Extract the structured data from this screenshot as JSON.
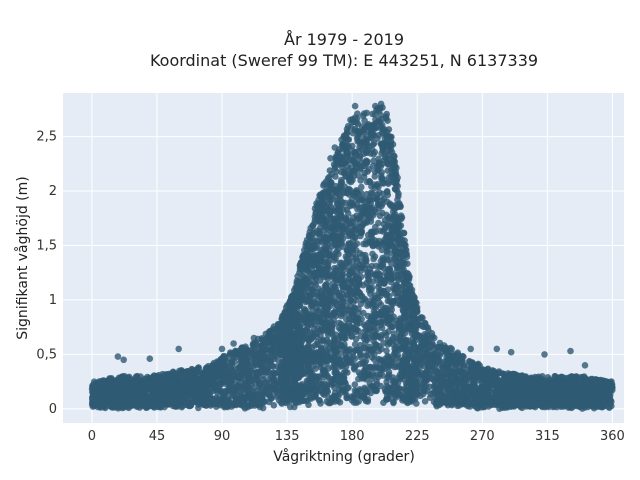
{
  "chart_data": {
    "type": "scatter",
    "title_lines": [
      "År 1979 - 2019",
      "Koordinat (Sweref 99 TM): E 443251, N 6137339"
    ],
    "xlabel": "Vågriktning (grader)",
    "ylabel": "Signifikant våghöjd (m)",
    "xlim": [
      -20,
      368
    ],
    "ylim": [
      -0.13,
      2.9
    ],
    "xticks": [
      0,
      45,
      90,
      135,
      180,
      225,
      270,
      315,
      360
    ],
    "xtick_labels": [
      "0",
      "45",
      "90",
      "135",
      "180",
      "225",
      "270",
      "315",
      "360"
    ],
    "yticks": [
      0,
      0.5,
      1,
      1.5,
      2,
      2.5
    ],
    "ytick_labels": [
      "0",
      "0,5",
      "1",
      "1,5",
      "2",
      "2,5"
    ],
    "grid": true,
    "marker_color": "#2f5a73",
    "background": "#e5ecf6",
    "envelope": {
      "x": [
        0,
        20,
        40,
        60,
        80,
        100,
        110,
        120,
        130,
        140,
        145,
        150,
        155,
        160,
        165,
        170,
        175,
        180,
        185,
        190,
        195,
        200,
        205,
        210,
        215,
        220,
        225,
        230,
        235,
        240,
        250,
        260,
        270,
        280,
        300,
        320,
        340,
        360
      ],
      "y": [
        0.25,
        0.3,
        0.3,
        0.35,
        0.4,
        0.55,
        0.6,
        0.7,
        0.8,
        1.1,
        1.4,
        1.6,
        1.9,
        2.05,
        2.2,
        2.4,
        2.55,
        2.7,
        2.72,
        2.74,
        2.76,
        2.78,
        2.72,
        2.3,
        1.7,
        1.2,
        0.95,
        0.8,
        0.7,
        0.62,
        0.55,
        0.45,
        0.4,
        0.35,
        0.3,
        0.3,
        0.3,
        0.25
      ],
      "floor": 0.05
    },
    "outliers": [
      {
        "x": 18,
        "y": 0.48
      },
      {
        "x": 22,
        "y": 0.45
      },
      {
        "x": 40,
        "y": 0.46
      },
      {
        "x": 60,
        "y": 0.55
      },
      {
        "x": 90,
        "y": 0.55
      },
      {
        "x": 98,
        "y": 0.6
      },
      {
        "x": 112,
        "y": 0.65
      },
      {
        "x": 165,
        "y": 2.3
      },
      {
        "x": 168,
        "y": 2.4
      },
      {
        "x": 182,
        "y": 2.78
      },
      {
        "x": 196,
        "y": 2.78
      },
      {
        "x": 200,
        "y": 2.8
      },
      {
        "x": 262,
        "y": 0.55
      },
      {
        "x": 280,
        "y": 0.55
      },
      {
        "x": 290,
        "y": 0.52
      },
      {
        "x": 313,
        "y": 0.5
      },
      {
        "x": 331,
        "y": 0.53
      },
      {
        "x": 341,
        "y": 0.4
      },
      {
        "x": 358,
        "y": 0.2
      }
    ]
  }
}
